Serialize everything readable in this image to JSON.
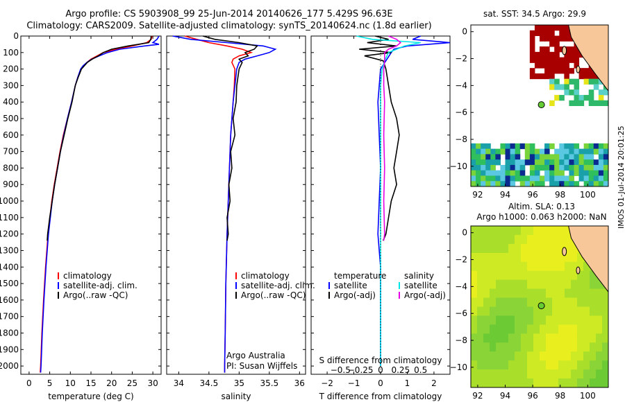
{
  "header": {
    "line1": "Argo profile: CS 5903908_99 25-Jun-2014 20140626_177 5.429S 96.63E",
    "line2": "Climatology: CARS2009. Satellite-adjusted climatology: synTS_20140624.nc (1.8d earlier)"
  },
  "colors": {
    "climatology": "#ff0000",
    "satellite": "#0000ff",
    "argo": "#000000",
    "sat_salinity": "#00e5e5",
    "argo_adj_salinity": "#e600e6",
    "land": "#f7c79a"
  },
  "chart_data": [
    {
      "type": "line",
      "id": "temperature",
      "xlabel": "temperature (deg C)",
      "ylim": [
        2050,
        0
      ],
      "xlim": [
        -2,
        32
      ],
      "xticks": [
        0,
        5,
        10,
        15,
        20,
        25,
        30
      ],
      "xtick_labels": [
        "0",
        "5",
        "10",
        "15",
        "20",
        "25",
        "30"
      ],
      "yticks": [
        0,
        100,
        200,
        300,
        400,
        500,
        600,
        700,
        800,
        900,
        1000,
        1100,
        1200,
        1300,
        1400,
        1500,
        1600,
        1700,
        1800,
        1900,
        2000
      ],
      "legend": [
        "climatology",
        "satellite-adj. clim.",
        "Argo(..raw -QC)"
      ],
      "series": [
        {
          "name": "climatology",
          "depth": [
            0,
            20,
            40,
            60,
            80,
            100,
            120,
            140,
            160,
            180,
            200,
            250,
            300,
            400,
            500,
            600,
            700,
            800,
            900,
            1000,
            1200,
            1400,
            1600,
            1800,
            2000,
            2040
          ],
          "values": [
            29.8,
            29.6,
            28.5,
            25,
            21,
            18,
            16.5,
            15,
            14,
            13.2,
            12.6,
            11.8,
            11.2,
            10.3,
            9.3,
            8.3,
            7.5,
            6.8,
            6.1,
            5.5,
            4.6,
            4,
            3.5,
            3.1,
            2.8,
            2.7
          ]
        },
        {
          "name": "satellite-adj. clim.",
          "depth": [
            0,
            20,
            40,
            50,
            60,
            80,
            100,
            120,
            140,
            160,
            180,
            200,
            250,
            300,
            400,
            500,
            600,
            700,
            800,
            900,
            1000,
            1200,
            1400,
            1600,
            1800,
            2000,
            2040
          ],
          "values": [
            31.5,
            31,
            30,
            31.5,
            28,
            22,
            19,
            17,
            15.2,
            14,
            13.1,
            12.5,
            11.8,
            11.2,
            10.3,
            9.3,
            8.4,
            7.6,
            6.9,
            6.2,
            5.6,
            4.7,
            4.1,
            3.6,
            3.2,
            2.9,
            2.8
          ]
        },
        {
          "name": "Argo(..raw -QC)",
          "depth": [
            0,
            20,
            40,
            60,
            80,
            100,
            120,
            140,
            160,
            180,
            200,
            250,
            300,
            400,
            500,
            600,
            700,
            800,
            900,
            1000,
            1100,
            1200,
            1240
          ],
          "values": [
            29.6,
            29.5,
            29,
            24,
            20,
            18,
            16.8,
            15.3,
            14.1,
            13.4,
            12.7,
            11.9,
            11.2,
            10.4,
            9.4,
            8.5,
            7.6,
            6.9,
            6.2,
            5.6,
            5,
            4.5,
            4.4
          ]
        }
      ]
    },
    {
      "type": "line",
      "id": "salinity",
      "xlabel": "salinity",
      "ylim": [
        2050,
        0
      ],
      "xlim": [
        33.8,
        36.1
      ],
      "xticks": [
        34,
        34.5,
        35,
        35.5,
        36
      ],
      "xtick_labels": [
        "34",
        "34.5",
        "35",
        "35.5",
        "36"
      ],
      "legend": [
        "climatology",
        "satellite-adj. clim.",
        "Argo(..raw -QC)"
      ],
      "annotation": [
        "Argo Australia",
        "PI: Susan Wijffels"
      ],
      "series": [
        {
          "name": "climatology",
          "depth": [
            0,
            20,
            40,
            60,
            80,
            100,
            120,
            140,
            160,
            200,
            300,
            400,
            600,
            800,
            1000,
            1200,
            1500,
            1800,
            2000,
            2040
          ],
          "values": [
            34.1,
            34.3,
            34.5,
            34.8,
            35.05,
            35.2,
            35.0,
            34.9,
            34.88,
            34.93,
            34.92,
            34.9,
            34.86,
            34.84,
            34.82,
            34.8,
            34.78,
            34.77,
            34.76,
            34.76
          ]
        },
        {
          "name": "satellite-adj. clim.",
          "depth": [
            0,
            20,
            40,
            60,
            80,
            100,
            120,
            140,
            160,
            200,
            300,
            400,
            600,
            800,
            1000,
            1200,
            1500,
            1800,
            2000,
            2040
          ],
          "values": [
            33.9,
            34.2,
            34.8,
            35.4,
            35.6,
            35.5,
            35.3,
            35.1,
            35.0,
            34.96,
            34.93,
            34.9,
            34.86,
            34.84,
            34.82,
            34.8,
            34.78,
            34.77,
            34.76,
            34.76
          ]
        },
        {
          "name": "Argo(..raw -QC)",
          "depth": [
            0,
            20,
            40,
            60,
            80,
            100,
            120,
            140,
            160,
            200,
            300,
            400,
            500,
            600,
            700,
            800,
            900,
            1000,
            1100,
            1200,
            1240
          ],
          "values": [
            34.4,
            34.6,
            35.0,
            35.3,
            35.25,
            35.1,
            35.15,
            35.0,
            35.05,
            35.0,
            34.96,
            34.95,
            34.9,
            34.93,
            34.86,
            34.88,
            34.83,
            34.85,
            34.8,
            34.82,
            34.8
          ]
        }
      ]
    },
    {
      "type": "line",
      "id": "difference",
      "xlabel": "T difference from climatology",
      "xlabel_top": "S difference from climatology",
      "ylim": [
        2050,
        0
      ],
      "xlim": [
        -2.6,
        2.6
      ],
      "xticks": [
        -2,
        -1,
        0,
        1,
        2
      ],
      "xtick_labels": [
        "−2",
        "−1",
        "0",
        "1",
        "2"
      ],
      "s_ticks": [
        -0.5,
        -0.25,
        0,
        0.25,
        0.5
      ],
      "s_tick_labels": [
        "−0.5",
        "−0.25",
        "0",
        "0.25",
        "0.5"
      ],
      "legend_temperature": [
        "temperature",
        "satellite",
        "Argo(-adj)"
      ],
      "legend_salinity": [
        "salinity",
        "satellite",
        "Argo(-adj)"
      ],
      "series": [
        {
          "name": "temperature satellite",
          "depth": [
            0,
            20,
            40,
            60,
            80,
            100,
            150,
            200,
            300,
            400,
            600,
            800,
            1000,
            1200,
            1400,
            1600,
            1800,
            2000
          ],
          "values": [
            1.5,
            1.2,
            2.6,
            1.0,
            0.5,
            0.4,
            0.2,
            0,
            -0.05,
            -0.1,
            -0.05,
            0,
            -0.05,
            -0.1,
            0,
            0,
            0,
            0
          ]
        },
        {
          "name": "temperature Argo(-adj)",
          "depth": [
            0,
            20,
            40,
            60,
            80,
            100,
            120,
            150,
            200,
            300,
            400,
            500,
            600,
            700,
            800,
            900,
            1000,
            1100,
            1200,
            1240
          ],
          "values": [
            -0.2,
            0.3,
            -0.5,
            0.6,
            -0.8,
            0.4,
            -0.6,
            0.1,
            0.2,
            0.3,
            0.4,
            0.6,
            0.7,
            0.6,
            0.5,
            0.6,
            0.4,
            0.3,
            0.2,
            0.1
          ]
        },
        {
          "name": "salinity satellite",
          "depth": [
            0,
            20,
            40,
            60,
            80,
            100,
            150,
            200,
            300,
            400,
            600,
            800,
            1000,
            1200,
            1400,
            1600,
            1800,
            2000
          ],
          "values": [
            -0.3,
            -0.1,
            0.5,
            0.3,
            0.2,
            0.1,
            0.05,
            0.02,
            0,
            0,
            0,
            0,
            0,
            0,
            0,
            0,
            0,
            0
          ]
        },
        {
          "name": "salinity Argo(-adj)",
          "depth": [
            0,
            20,
            40,
            60,
            80,
            100,
            150,
            200,
            300,
            400,
            600,
            800,
            1000,
            1200,
            1240
          ],
          "values": [
            0.1,
            0.2,
            0.25,
            0.2,
            0.1,
            0.05,
            0.05,
            0.04,
            0.04,
            0.05,
            0.04,
            0.05,
            0.04,
            0.05,
            0.04
          ]
        }
      ]
    },
    {
      "type": "heatmap",
      "id": "sst_map",
      "title": "sat. SST: 34.5 Argo: 29.9",
      "xlim": [
        91.5,
        101.5
      ],
      "ylim": [
        -11.5,
        0.5
      ],
      "xticks": [
        92,
        94,
        96,
        98,
        100
      ],
      "yticks": [
        0,
        -2,
        -4,
        -6,
        -8,
        -10
      ],
      "argo_position": [
        96.63,
        -5.429
      ]
    },
    {
      "type": "heatmap",
      "id": "sla_map",
      "title": "Altim. SLA: 0.13",
      "subtitle": "Argo h1000: 0.063 h2000: NaN",
      "xlim": [
        91.5,
        101.5
      ],
      "ylim": [
        -11.5,
        0.5
      ],
      "xticks": [
        92,
        94,
        96,
        98,
        100
      ],
      "yticks": [
        0,
        -2,
        -4,
        -6,
        -8,
        -10
      ],
      "argo_position": [
        96.63,
        -5.429
      ]
    }
  ],
  "footer": {
    "stamp": "IMOS 01-Jul-2014 20:01:25"
  }
}
